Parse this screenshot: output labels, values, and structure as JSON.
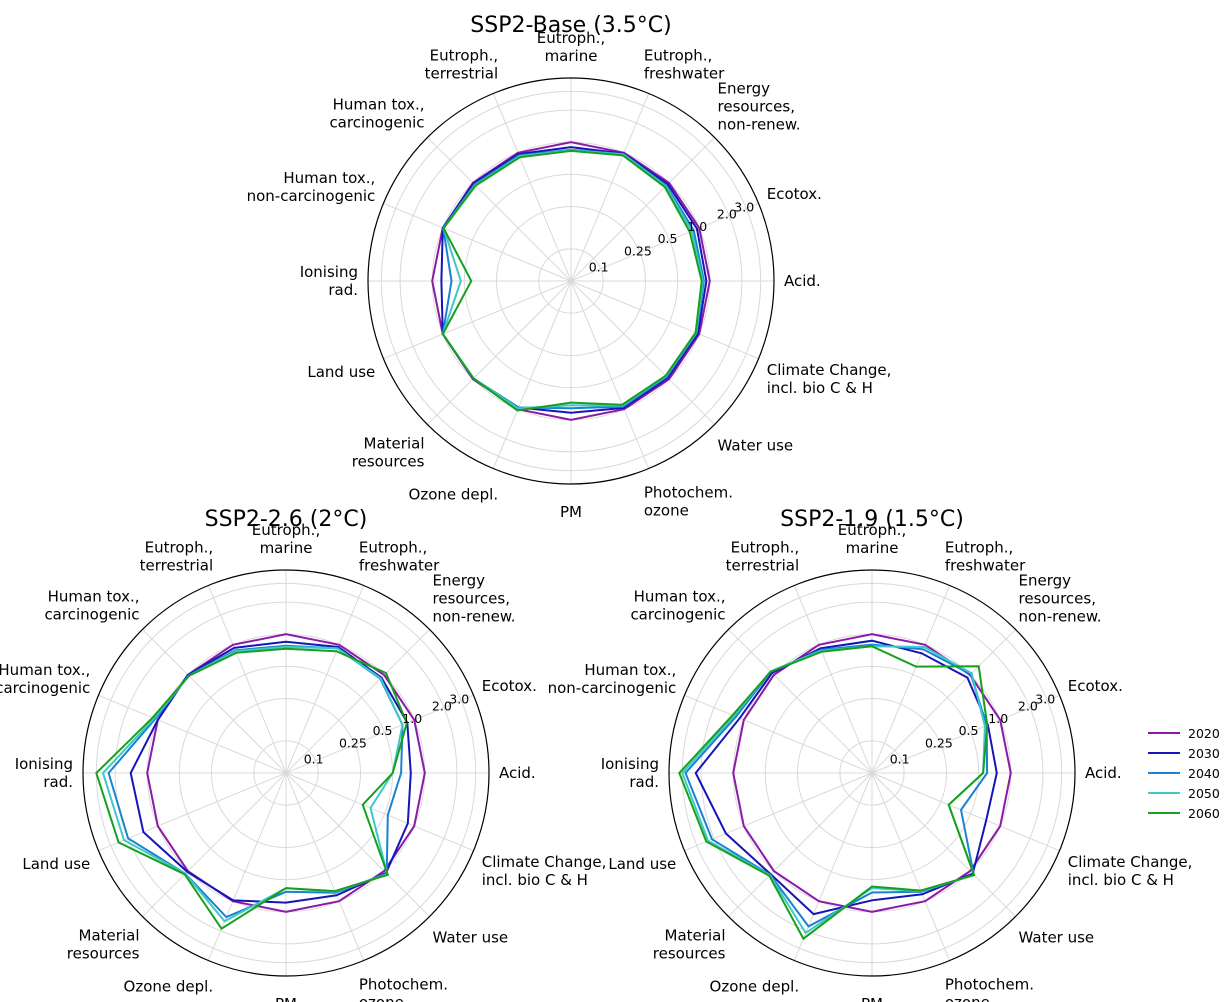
{
  "chart_data": [
    {
      "type": "radar",
      "title": "SSP2-Base (3.5°C)",
      "radial_scale": "log",
      "radial_ticks": [
        "0.1",
        "0.25",
        "0.5",
        "1.0",
        "2.0",
        "3.0"
      ],
      "categories": [
        "Acid.",
        "Ecotox.",
        "Energy\nresources,\nnon-renew.",
        "Eutroph.,\nfreshwater",
        "Eutroph.,\nmarine",
        "Eutroph.,\nterrestrial",
        "Human tox.,\ncarcinogenic",
        "Human tox.,\nnon-carcinogenic",
        "Ionising\nrad.",
        "Land use",
        "Material\nresources",
        "Ozone depl.",
        "PM",
        "Photochem.\nozone",
        "Water use",
        "Climate Change,\nincl. bio C & H"
      ],
      "series": [
        {
          "name": "2020",
          "values": [
            1.0,
            1.0,
            1.0,
            1.0,
            1.0,
            1.0,
            1.0,
            1.0,
            1.0,
            1.0,
            1.0,
            1.0,
            1.0,
            1.0,
            1.0,
            1.0
          ]
        },
        {
          "name": "2030",
          "values": [
            0.93,
            0.95,
            0.96,
            0.98,
            0.9,
            0.97,
            0.98,
            1.0,
            0.82,
            1.0,
            0.99,
            0.96,
            0.86,
            0.97,
            0.96,
            0.97
          ]
        },
        {
          "name": "2040",
          "values": [
            0.88,
            0.88,
            0.92,
            0.97,
            0.85,
            0.94,
            0.95,
            0.99,
            0.66,
            1.0,
            0.98,
            0.96,
            0.78,
            0.94,
            0.93,
            0.94
          ]
        },
        {
          "name": "2050",
          "values": [
            0.86,
            0.84,
            0.9,
            0.96,
            0.84,
            0.92,
            0.93,
            0.98,
            0.54,
            1.0,
            0.98,
            0.98,
            0.73,
            0.92,
            0.91,
            0.93
          ]
        },
        {
          "name": "2060",
          "values": [
            0.84,
            0.8,
            0.88,
            0.94,
            0.83,
            0.9,
            0.92,
            0.98,
            0.43,
            1.0,
            0.98,
            1.03,
            0.69,
            0.9,
            0.9,
            0.92
          ]
        }
      ]
    },
    {
      "type": "radar",
      "title": "SSP2-2.6 (2°C)",
      "radial_scale": "log",
      "radial_ticks": [
        "0.1",
        "0.25",
        "0.5",
        "1.0",
        "2.0",
        "3.0"
      ],
      "categories": [
        "Acid.",
        "Ecotox.",
        "Energy\nresources,\nnon-renew.",
        "Eutroph.,\nfreshwater",
        "Eutroph.,\nmarine",
        "Eutroph.,\nterrestrial",
        "Human tox.,\ncarcinogenic",
        "Human tox.,\nnon-carcinogenic",
        "Ionising\nrad.",
        "Land use",
        "Material\nresources",
        "Ozone depl.",
        "PM",
        "Photochem.\nozone",
        "Water use",
        "Climate Change,\nincl. bio C & H"
      ],
      "series": [
        {
          "name": "2020",
          "values": [
            1.0,
            1.0,
            1.0,
            1.0,
            1.0,
            1.0,
            1.0,
            1.0,
            1.0,
            1.0,
            1.0,
            1.0,
            1.0,
            1.0,
            1.0,
            1.0
          ]
        },
        {
          "name": "2030",
          "values": [
            0.74,
            0.85,
            0.92,
            0.95,
            0.85,
            0.93,
            1.0,
            1.0,
            1.43,
            1.4,
            1.02,
            0.98,
            0.82,
            0.87,
            1.06,
            0.86
          ]
        },
        {
          "name": "2040",
          "values": [
            0.6,
            0.76,
            0.89,
            0.92,
            0.78,
            0.88,
            0.98,
            1.06,
            2.3,
            2.0,
            1.08,
            1.45,
            0.65,
            0.82,
            1.08,
            0.54
          ]
        },
        {
          "name": "2050",
          "values": [
            0.5,
            0.76,
            0.9,
            0.92,
            0.76,
            0.86,
            0.97,
            1.09,
            2.6,
            2.2,
            1.08,
            1.6,
            0.6,
            0.8,
            1.1,
            0.36
          ]
        },
        {
          "name": "2060",
          "values": [
            0.5,
            0.84,
            1.06,
            0.86,
            0.73,
            0.83,
            0.97,
            1.13,
            3.0,
            2.5,
            1.1,
            1.9,
            0.6,
            0.79,
            1.12,
            0.3
          ]
        }
      ]
    },
    {
      "type": "radar",
      "title": "SSP2-1.9 (1.5°C)",
      "radial_scale": "log",
      "radial_ticks": [
        "0.1",
        "0.25",
        "0.5",
        "1.0",
        "2.0",
        "3.0"
      ],
      "categories": [
        "Acid.",
        "Ecotox.",
        "Energy\nresources,\nnon-renew.",
        "Eutroph.,\nfreshwater",
        "Eutroph.,\nmarine",
        "Eutroph.,\nterrestrial",
        "Human tox.,\ncarcinogenic",
        "Human tox.,\nnon-carcinogenic",
        "Ionising\nrad.",
        "Land use",
        "Material\nresources",
        "Ozone depl.",
        "PM",
        "Photochem.\nozone",
        "Water use",
        "Climate Change,\nincl. bio C & H"
      ],
      "series": [
        {
          "name": "2020",
          "values": [
            1.0,
            1.0,
            1.0,
            1.0,
            1.0,
            1.0,
            1.0,
            1.0,
            1.0,
            1.0,
            1.0,
            1.0,
            1.0,
            1.0,
            1.0,
            1.0
          ]
        },
        {
          "name": "2030",
          "values": [
            0.74,
            0.75,
            0.92,
            0.82,
            0.87,
            0.92,
            1.06,
            1.1,
            2.25,
            1.52,
            1.1,
            1.35,
            0.78,
            0.85,
            1.08,
            0.72
          ]
        },
        {
          "name": "2040",
          "values": [
            0.6,
            0.73,
            1.02,
            0.9,
            0.8,
            0.89,
            1.1,
            1.2,
            2.8,
            2.1,
            1.12,
            1.8,
            0.66,
            0.8,
            1.12,
            0.4
          ]
        },
        {
          "name": "2050",
          "values": [
            0.55,
            0.7,
            1.05,
            0.95,
            0.77,
            0.87,
            1.11,
            1.25,
            3.0,
            2.3,
            1.13,
            2.1,
            0.6,
            0.79,
            1.13,
            0.3
          ]
        },
        {
          "name": "2060",
          "values": [
            0.55,
            0.74,
            1.3,
            0.6,
            0.77,
            0.85,
            1.1,
            1.3,
            3.2,
            2.4,
            1.15,
            2.4,
            0.58,
            0.78,
            1.13,
            0.3
          ]
        }
      ]
    }
  ],
  "legend": {
    "placement": "right",
    "entries": [
      {
        "label": "2020",
        "color": "#8b1aa8"
      },
      {
        "label": "2030",
        "color": "#1515b8"
      },
      {
        "label": "2040",
        "color": "#1a82d2"
      },
      {
        "label": "2050",
        "color": "#3ec8c8"
      },
      {
        "label": "2060",
        "color": "#17a01e"
      }
    ]
  },
  "colors": {
    "grid": "#d9d9d9",
    "frame": "#000000"
  }
}
